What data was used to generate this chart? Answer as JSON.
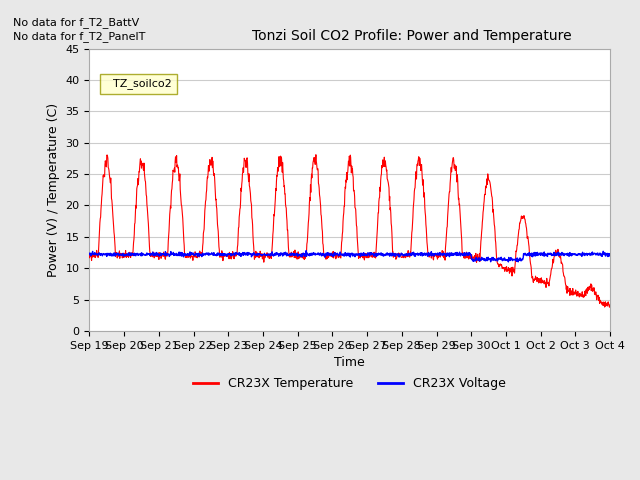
{
  "title": "Tonzi Soil CO2 Profile: Power and Temperature",
  "ylabel": "Power (V) / Temperature (C)",
  "xlabel": "Time",
  "no_data_text1": "No data for f_T2_BattV",
  "no_data_text2": "No data for f_T2_PanelT",
  "legend_box_label": "TZ_soilco2",
  "legend1": "CR23X Temperature",
  "legend2": "CR23X Voltage",
  "color_temp": "#ff0000",
  "color_voltage": "#0000ff",
  "background_color": "#e8e8e8",
  "plot_bg_color": "#ffffff",
  "ylim": [
    0,
    45
  ],
  "yticks": [
    0,
    5,
    10,
    15,
    20,
    25,
    30,
    35,
    40,
    45
  ],
  "xtick_labels": [
    "Sep 19",
    "Sep 20",
    "Sep 21",
    "Sep 22",
    "Sep 23",
    "Sep 24",
    "Sep 25",
    "Sep 26",
    "Sep 27",
    "Sep 28",
    "Sep 29",
    "Sep 30",
    "Oct 1",
    "Oct 2",
    "Oct 3",
    "Oct 4"
  ],
  "grid_color": "#cccccc"
}
